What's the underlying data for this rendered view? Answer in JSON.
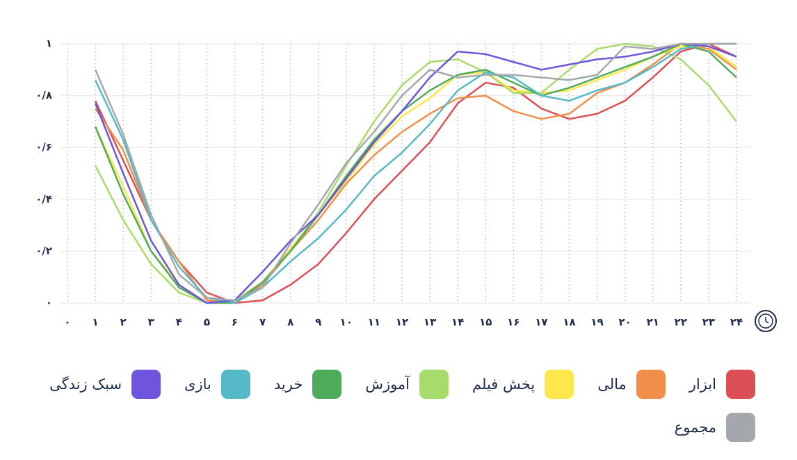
{
  "chart_data": {
    "type": "line",
    "x": [
      1,
      2,
      3,
      4,
      5,
      6,
      7,
      8,
      9,
      10,
      11,
      12,
      13,
      14,
      15,
      16,
      17,
      18,
      19,
      20,
      21,
      22,
      23,
      24
    ],
    "xlim": [
      0,
      24
    ],
    "xticks": [
      {
        "value": 0,
        "label": "۰"
      },
      {
        "value": 1,
        "label": "۱"
      },
      {
        "value": 2,
        "label": "۲"
      },
      {
        "value": 3,
        "label": "۳"
      },
      {
        "value": 4,
        "label": "۴"
      },
      {
        "value": 5,
        "label": "۵"
      },
      {
        "value": 6,
        "label": "۶"
      },
      {
        "value": 7,
        "label": "۷"
      },
      {
        "value": 8,
        "label": "۸"
      },
      {
        "value": 9,
        "label": "۹"
      },
      {
        "value": 10,
        "label": "۱۰"
      },
      {
        "value": 11,
        "label": "۱۱"
      },
      {
        "value": 12,
        "label": "۱۲"
      },
      {
        "value": 13,
        "label": "۱۳"
      },
      {
        "value": 14,
        "label": "۱۴"
      },
      {
        "value": 15,
        "label": "۱۵"
      },
      {
        "value": 16,
        "label": "۱۶"
      },
      {
        "value": 17,
        "label": "۱۷"
      },
      {
        "value": 18,
        "label": "۱۸"
      },
      {
        "value": 19,
        "label": "۱۹"
      },
      {
        "value": 20,
        "label": "۲۰"
      },
      {
        "value": 21,
        "label": "۲۱"
      },
      {
        "value": 22,
        "label": "۲۲"
      },
      {
        "value": 23,
        "label": "۲۳"
      },
      {
        "value": 24,
        "label": "۲۴"
      }
    ],
    "ylim": [
      0,
      1
    ],
    "yticks": [
      {
        "value": 0,
        "label": "۰"
      },
      {
        "value": 0.2,
        "label": "۰/۲"
      },
      {
        "value": 0.4,
        "label": "۰/۴"
      },
      {
        "value": 0.6,
        "label": "۰/۶"
      },
      {
        "value": 0.8,
        "label": "۰/۸"
      },
      {
        "value": 1,
        "label": "۱"
      }
    ],
    "grid": true,
    "series": [
      {
        "name": "ابزار",
        "color": "#dc4f55",
        "values": [
          0.78,
          0.55,
          0.32,
          0.16,
          0.04,
          0,
          0.01,
          0.07,
          0.15,
          0.27,
          0.4,
          0.51,
          0.62,
          0.77,
          0.85,
          0.83,
          0.75,
          0.71,
          0.73,
          0.78,
          0.87,
          0.97,
          1.0,
          0.95
        ]
      },
      {
        "name": "مالی",
        "color": "#ef8f4a",
        "values": [
          0.75,
          0.59,
          0.32,
          0.16,
          0.01,
          0,
          0.07,
          0.2,
          0.32,
          0.46,
          0.57,
          0.66,
          0.73,
          0.79,
          0.8,
          0.74,
          0.71,
          0.73,
          0.81,
          0.85,
          0.92,
          1.0,
          0.98,
          0.9
        ]
      },
      {
        "name": "پخش فیلم",
        "color": "#fde74c",
        "values": [
          0.68,
          0.45,
          0.2,
          0.07,
          0,
          0.01,
          0.08,
          0.21,
          0.34,
          0.47,
          0.61,
          0.72,
          0.79,
          0.88,
          0.89,
          0.82,
          0.81,
          0.82,
          0.86,
          0.9,
          0.95,
          0.99,
          0.99,
          0.91
        ]
      },
      {
        "name": "آموزش",
        "color": "#a8dc6a",
        "values": [
          0.53,
          0.32,
          0.15,
          0.04,
          0,
          0.01,
          0.08,
          0.2,
          0.35,
          0.53,
          0.7,
          0.84,
          0.93,
          0.94,
          0.89,
          0.81,
          0.81,
          0.9,
          0.98,
          1.0,
          0.99,
          0.94,
          0.84,
          0.7
        ]
      },
      {
        "name": "خرید",
        "color": "#4fab5c",
        "values": [
          0.68,
          0.42,
          0.2,
          0.06,
          0,
          0,
          0.08,
          0.2,
          0.34,
          0.49,
          0.63,
          0.74,
          0.82,
          0.88,
          0.9,
          0.85,
          0.8,
          0.83,
          0.87,
          0.91,
          0.95,
          1.0,
          0.97,
          0.87
        ]
      },
      {
        "name": "بازی",
        "color": "#55b9c8",
        "values": [
          0.86,
          0.63,
          0.32,
          0.14,
          0.02,
          0,
          0.06,
          0.16,
          0.25,
          0.36,
          0.49,
          0.58,
          0.69,
          0.82,
          0.89,
          0.87,
          0.8,
          0.78,
          0.82,
          0.85,
          0.91,
          0.98,
          1.0,
          1.0
        ]
      },
      {
        "name": "سبک زندگی",
        "color": "#6f55dd",
        "values": [
          0.77,
          0.5,
          0.24,
          0.07,
          0,
          0.01,
          0.12,
          0.24,
          0.34,
          0.48,
          0.62,
          0.74,
          0.87,
          0.97,
          0.96,
          0.93,
          0.9,
          0.92,
          0.94,
          0.95,
          0.97,
          1.0,
          0.99,
          0.95
        ]
      },
      {
        "name": "مجموع",
        "color": "#a4a8ad",
        "values": [
          0.9,
          0.65,
          0.34,
          0.11,
          0.02,
          0.01,
          0.06,
          0.23,
          0.38,
          0.54,
          0.66,
          0.8,
          0.9,
          0.87,
          0.88,
          0.88,
          0.87,
          0.86,
          0.88,
          0.99,
          0.98,
          1.0,
          1.0,
          1.0
        ]
      }
    ]
  }
}
